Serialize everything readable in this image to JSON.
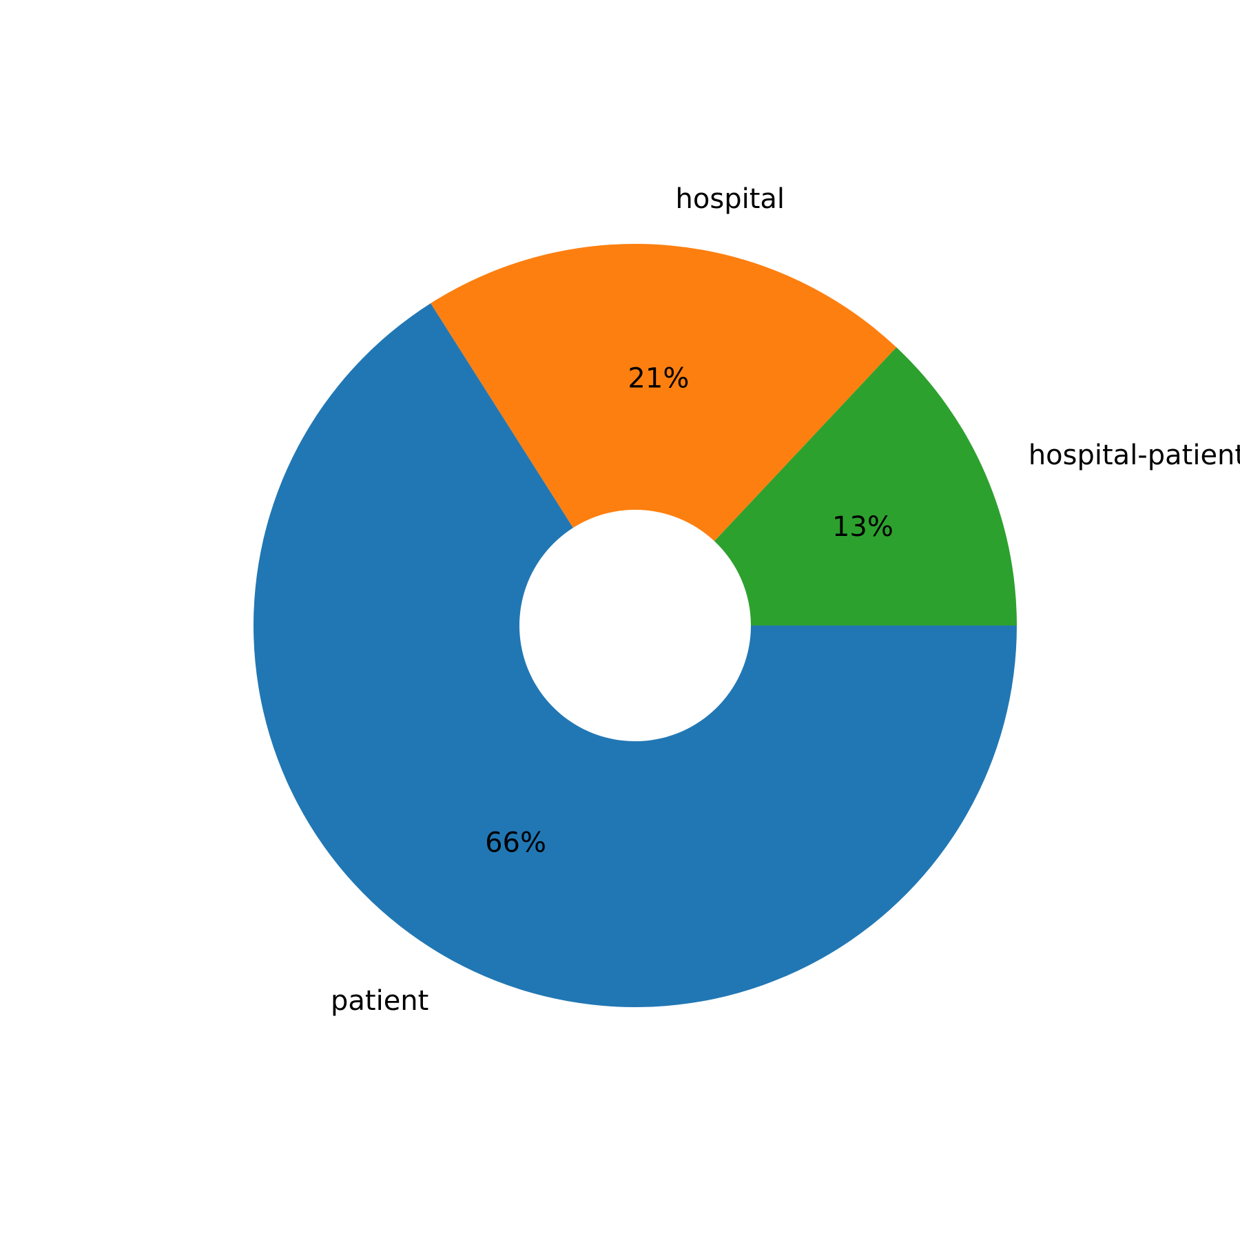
{
  "chart_data": {
    "type": "pie",
    "donut": true,
    "start_angle_deg": 0,
    "direction": "clockwise-on-screen",
    "slices": [
      {
        "label": "patient",
        "value": 66,
        "pct_label": "66%",
        "color": "#2177b4"
      },
      {
        "label": "hospital",
        "value": 21,
        "pct_label": "21%",
        "color": "#fd7f10"
      },
      {
        "label": "hospital-patient",
        "value": 13,
        "pct_label": "13%",
        "color": "#2da12e"
      }
    ]
  }
}
